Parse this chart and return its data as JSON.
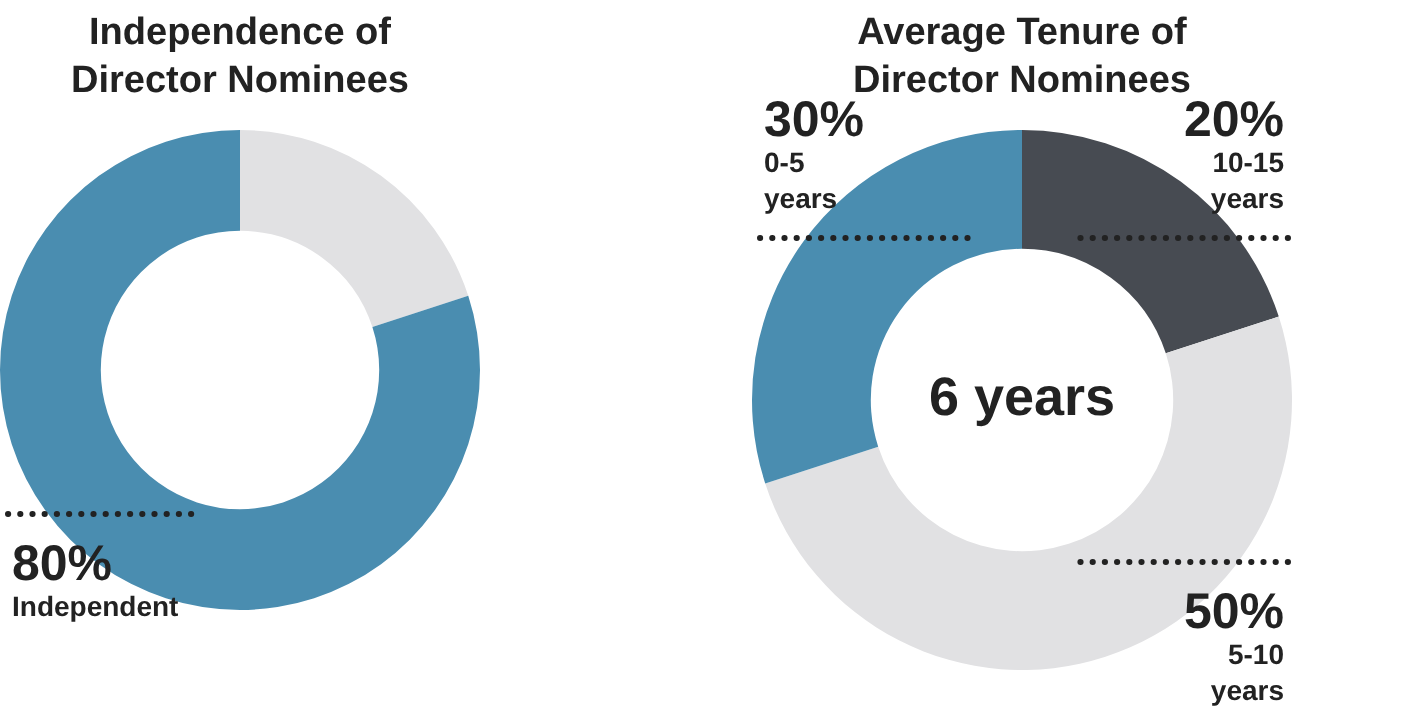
{
  "chart_data": [
    {
      "type": "donut",
      "title": "Independence of Director Nominees",
      "categories": [
        null,
        "Independent"
      ],
      "values": [
        20,
        80
      ],
      "colors": [
        "#e1e1e3",
        "#4a8db0"
      ],
      "value_labels": [
        null,
        "80%"
      ],
      "legend": false
    },
    {
      "type": "donut",
      "title": "Average Tenure of Director Nominees",
      "categories": [
        "10-15 years",
        "5-10 years",
        "0-5 years"
      ],
      "values": [
        20,
        50,
        30
      ],
      "colors": [
        "#474b52",
        "#e1e1e3",
        "#4a8db0"
      ],
      "value_labels": [
        "20%",
        "50%",
        "30%"
      ],
      "annotations": [
        "6 years"
      ],
      "legend": false
    }
  ]
}
